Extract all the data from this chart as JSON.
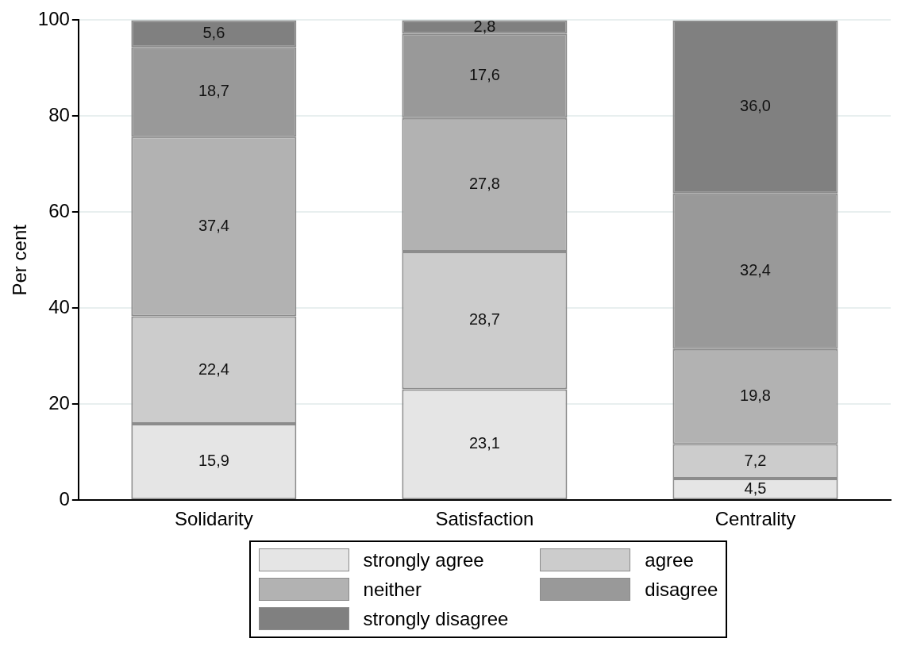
{
  "chart_data": {
    "type": "bar",
    "stacked": true,
    "ylabel": "Per cent",
    "categories": [
      "Solidarity",
      "Satisfaction",
      "Centrality"
    ],
    "ylim": [
      0,
      100
    ],
    "yticks": [
      0,
      20,
      40,
      60,
      80,
      100
    ],
    "grid": "y",
    "legend": "bottom",
    "series": [
      {
        "name": "strongly agree",
        "color": "#e5e5e5",
        "values": [
          15.9,
          23.1,
          4.5
        ],
        "value_labels": [
          "15,9",
          "23,1",
          "4,5"
        ]
      },
      {
        "name": "agree",
        "color": "#cccccc",
        "values": [
          22.4,
          28.7,
          7.2
        ],
        "value_labels": [
          "22,4",
          "28,7",
          "7,2"
        ]
      },
      {
        "name": "neither",
        "color": "#b2b2b2",
        "values": [
          37.4,
          27.8,
          19.8
        ],
        "value_labels": [
          "37,4",
          "27,8",
          "19,8"
        ]
      },
      {
        "name": "disagree",
        "color": "#999999",
        "values": [
          18.7,
          17.6,
          32.4
        ],
        "value_labels": [
          "18,7",
          "17,6",
          "32,4"
        ]
      },
      {
        "name": "strongly disagree",
        "color": "#808080",
        "values": [
          5.6,
          2.8,
          36.0
        ],
        "value_labels": [
          "5,6",
          "2,8",
          "36,0"
        ]
      }
    ]
  }
}
